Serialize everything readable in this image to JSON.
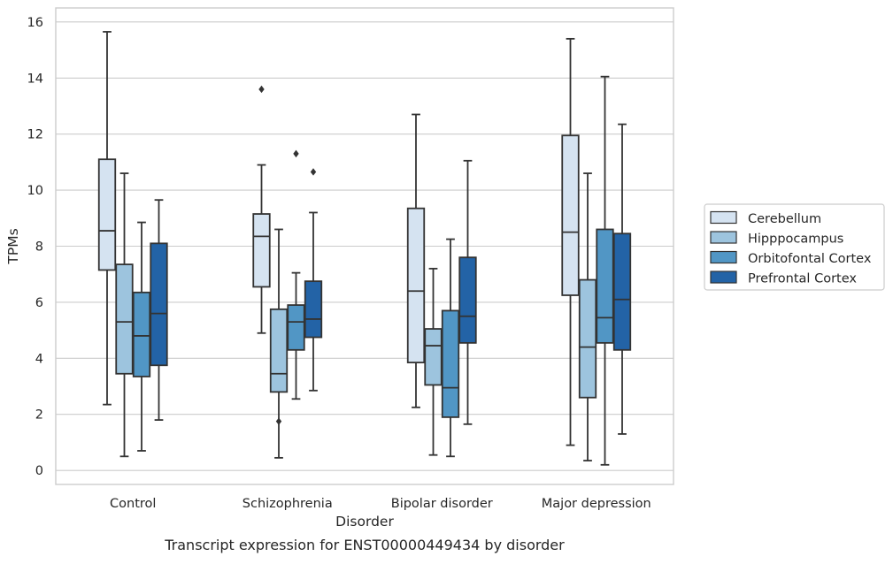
{
  "caption": "Transcript expression for ENST00000449434 by disorder",
  "colors": {
    "Cerebellum": "#d5e3f1",
    "Hipppocampus": "#9dc4de",
    "Orbitofontal Cortex": "#5196c5",
    "Prefrontal Cortex": "#2363a6",
    "lines": "#333333",
    "grid": "#cccccc",
    "frame": "#cccccc"
  },
  "chart_data": {
    "type": "box",
    "xlabel": "Disorder",
    "ylabel": "TPMs",
    "ylim": [
      -0.5,
      16.5
    ],
    "yticks": [
      0,
      2,
      4,
      6,
      8,
      10,
      12,
      14,
      16
    ],
    "grid": "horizontal",
    "legend_position": "right",
    "categories": [
      "Control",
      "Schizophrenia",
      "Bipolar disorder",
      "Major depression"
    ],
    "series": [
      {
        "name": "Cerebellum",
        "boxes": [
          {
            "whislo": 2.35,
            "q1": 7.15,
            "med": 8.55,
            "q3": 11.1,
            "whishi": 15.65,
            "fliers": []
          },
          {
            "whislo": 4.9,
            "q1": 6.55,
            "med": 8.35,
            "q3": 9.15,
            "whishi": 10.9,
            "fliers": [
              13.6
            ]
          },
          {
            "whislo": 2.25,
            "q1": 3.85,
            "med": 6.4,
            "q3": 9.35,
            "whishi": 12.7,
            "fliers": []
          },
          {
            "whislo": 0.9,
            "q1": 6.25,
            "med": 8.5,
            "q3": 11.95,
            "whishi": 15.4,
            "fliers": []
          }
        ]
      },
      {
        "name": "Hipppocampus",
        "boxes": [
          {
            "whislo": 0.5,
            "q1": 3.45,
            "med": 5.3,
            "q3": 7.35,
            "whishi": 10.6,
            "fliers": []
          },
          {
            "whislo": 0.45,
            "q1": 2.8,
            "med": 3.45,
            "q3": 5.75,
            "whishi": 8.6,
            "fliers": [
              1.75
            ]
          },
          {
            "whislo": 0.55,
            "q1": 3.05,
            "med": 4.45,
            "q3": 5.05,
            "whishi": 7.2,
            "fliers": []
          },
          {
            "whislo": 0.35,
            "q1": 2.6,
            "med": 4.4,
            "q3": 6.8,
            "whishi": 10.6,
            "fliers": []
          }
        ]
      },
      {
        "name": "Orbitofontal Cortex",
        "boxes": [
          {
            "whislo": 0.7,
            "q1": 3.35,
            "med": 4.8,
            "q3": 6.35,
            "whishi": 8.85,
            "fliers": []
          },
          {
            "whislo": 2.55,
            "q1": 4.3,
            "med": 5.3,
            "q3": 5.9,
            "whishi": 7.05,
            "fliers": [
              11.3
            ]
          },
          {
            "whislo": 0.5,
            "q1": 1.9,
            "med": 2.95,
            "q3": 5.7,
            "whishi": 8.25,
            "fliers": []
          },
          {
            "whislo": 0.2,
            "q1": 4.55,
            "med": 5.45,
            "q3": 8.6,
            "whishi": 14.05,
            "fliers": []
          }
        ]
      },
      {
        "name": "Prefrontal Cortex",
        "boxes": [
          {
            "whislo": 1.8,
            "q1": 3.75,
            "med": 5.6,
            "q3": 8.1,
            "whishi": 9.65,
            "fliers": []
          },
          {
            "whislo": 2.85,
            "q1": 4.75,
            "med": 5.4,
            "q3": 6.75,
            "whishi": 9.2,
            "fliers": [
              10.65
            ]
          },
          {
            "whislo": 1.65,
            "q1": 4.55,
            "med": 5.5,
            "q3": 7.6,
            "whishi": 11.05,
            "fliers": []
          },
          {
            "whislo": 1.3,
            "q1": 4.3,
            "med": 6.1,
            "q3": 8.45,
            "whishi": 12.35,
            "fliers": []
          }
        ]
      }
    ]
  }
}
